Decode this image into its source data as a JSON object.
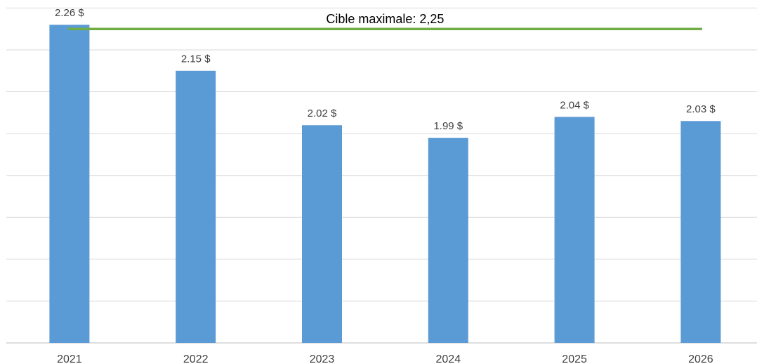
{
  "chart_data": {
    "type": "bar",
    "categories": [
      "2021",
      "2022",
      "2023",
      "2024",
      "2025",
      "2026"
    ],
    "values": [
      2.26,
      2.15,
      2.02,
      1.99,
      2.04,
      2.03
    ],
    "value_labels": [
      "2.26 $",
      "2.15 $",
      "2.02 $",
      "1.99 $",
      "2.04 $",
      "2.03 $"
    ],
    "color": "#5b9bd5",
    "ylim": [
      1.5,
      2.3
    ],
    "yticks": [
      1.5,
      1.6,
      1.7,
      1.8,
      1.9,
      2.0,
      2.1,
      2.2,
      2.3
    ],
    "grid": true,
    "target": {
      "value": 2.25,
      "label": "Cible maximale: 2,25",
      "color": "#70ad47"
    }
  }
}
